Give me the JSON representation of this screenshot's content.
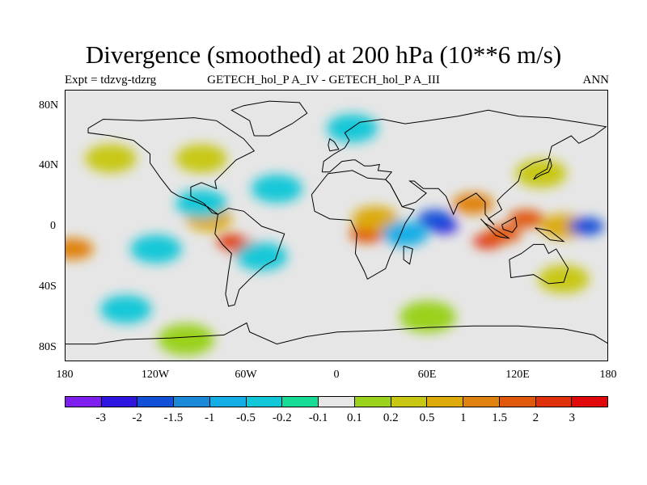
{
  "title": "Divergence (smoothed) at 200 hPa (10**6 m/s)",
  "subtitle_left": "Expt = tdzvg-tdzrg",
  "subtitle_center": "GETECH_hol_P A_IV - GETECH_hol_P A_III",
  "subtitle_right": "ANN",
  "lat_labels": [
    "80N",
    "40N",
    "0",
    "40S",
    "80S"
  ],
  "lon_labels": [
    "180",
    "120W",
    "60W",
    "0",
    "60E",
    "120E",
    "180"
  ],
  "colorbar": {
    "colors": [
      "#7f1fef",
      "#2e16e0",
      "#1250d8",
      "#1a8ad8",
      "#14aee6",
      "#12c8d8",
      "#16dc96",
      "#e6e6e6",
      "#9ad21e",
      "#c8c814",
      "#dcaa0a",
      "#e08210",
      "#e0580c",
      "#e0300a",
      "#e00808"
    ],
    "labels": [
      "-3",
      "-2",
      "-1.5",
      "-1",
      "-0.5",
      "-0.2",
      "-0.1",
      "0.1",
      "0.2",
      "0.5",
      "1",
      "1.5",
      "2",
      "3"
    ]
  },
  "map": {
    "background_color": "#e6e6e6",
    "coastline_color": "#000000",
    "features": [
      {
        "lon": -70,
        "lat": -10,
        "level": 6
      },
      {
        "lon": -60,
        "lat": -15,
        "level": 5
      },
      {
        "lon": -85,
        "lat": 5,
        "level": 3
      },
      {
        "lon": 20,
        "lat": -5,
        "level": 5
      },
      {
        "lon": 25,
        "lat": 5,
        "level": 3
      },
      {
        "lon": 100,
        "lat": -10,
        "level": 6
      },
      {
        "lon": 110,
        "lat": -5,
        "level": 5
      },
      {
        "lon": 125,
        "lat": 5,
        "level": 5
      },
      {
        "lon": 90,
        "lat": 15,
        "level": 4
      },
      {
        "lon": 150,
        "lat": 0,
        "level": 3
      },
      {
        "lon": -175,
        "lat": -15,
        "level": 4
      },
      {
        "lon": 70,
        "lat": 0,
        "level": -6
      },
      {
        "lon": 65,
        "lat": 5,
        "level": -5
      },
      {
        "lon": 165,
        "lat": 0,
        "level": -5
      },
      {
        "lon": 45,
        "lat": -5,
        "level": -3
      },
      {
        "lon": -90,
        "lat": 15,
        "level": -2
      },
      {
        "lon": -120,
        "lat": -15,
        "level": -2
      },
      {
        "lon": -50,
        "lat": -20,
        "level": -2
      },
      {
        "lon": -40,
        "lat": 25,
        "level": -2
      },
      {
        "lon": -150,
        "lat": 45,
        "level": 2
      },
      {
        "lon": -90,
        "lat": 45,
        "level": 2
      },
      {
        "lon": 135,
        "lat": 35,
        "level": 2
      },
      {
        "lon": 150,
        "lat": -35,
        "level": 2
      },
      {
        "lon": 10,
        "lat": 65,
        "level": -2
      },
      {
        "lon": -140,
        "lat": -55,
        "level": -2
      },
      {
        "lon": -100,
        "lat": -75,
        "level": 1
      },
      {
        "lon": 60,
        "lat": -60,
        "level": 1
      }
    ]
  }
}
